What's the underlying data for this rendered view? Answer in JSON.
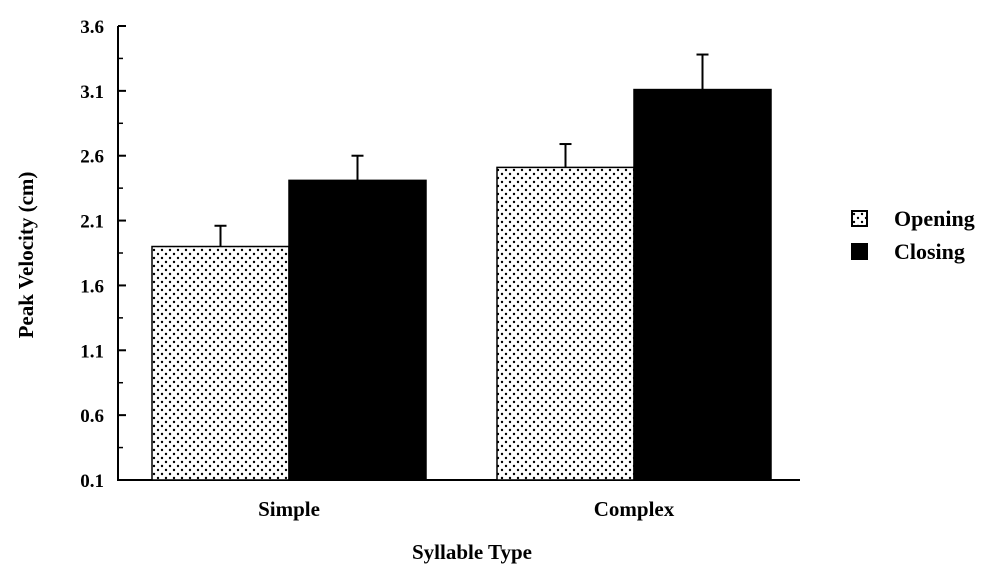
{
  "chart_data": {
    "type": "bar",
    "xlabel": "Syllable Type",
    "ylabel": "Peak Velocity (cm)",
    "categories": [
      "Simple",
      "Complex"
    ],
    "series": [
      {
        "name": "Opening",
        "values": [
          1.9,
          2.51
        ],
        "errors": [
          0.16,
          0.18
        ],
        "pattern": "dotted",
        "color": "#ffffff"
      },
      {
        "name": "Closing",
        "values": [
          2.41,
          3.11
        ],
        "errors": [
          0.19,
          0.27
        ],
        "pattern": "solid",
        "color": "#000000"
      }
    ],
    "ylim": [
      0.1,
      3.6
    ],
    "yticks": [
      "0.1",
      "0.6",
      "1.1",
      "1.6",
      "2.1",
      "2.6",
      "3.1",
      "3.6"
    ],
    "ytick_values": [
      0.1,
      0.6,
      1.1,
      1.6,
      2.1,
      2.6,
      3.1,
      3.6
    ],
    "minor_ticks": true,
    "grid": false,
    "legend_position": "right"
  }
}
